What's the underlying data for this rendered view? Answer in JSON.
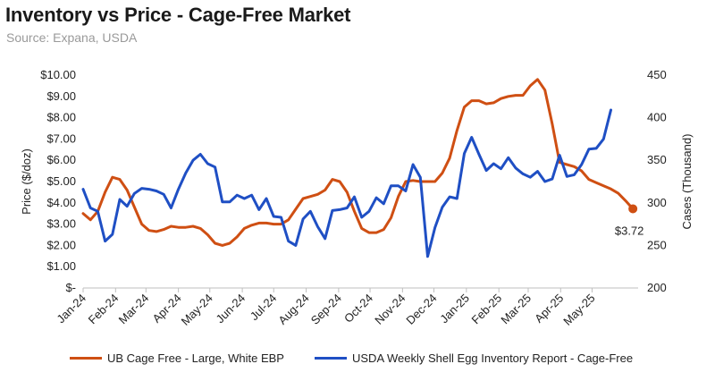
{
  "title": "Inventory vs Price - Cage-Free Market",
  "subtitle": "Source: Expana, USDA",
  "colors": {
    "price": "#cf4f13",
    "inventory": "#1f4fc4",
    "axis": "#bfbfbf"
  },
  "legend": {
    "price": "UB Cage Free - Large, White EBP",
    "inventory": "USDA Weekly Shell Egg Inventory Report - Cage-Free"
  },
  "chart_data": {
    "type": "line",
    "title": "Inventory vs Price - Cage-Free Market",
    "subtitle": "Source: Expana, USDA",
    "x_axis_type": "date",
    "x_tick_labels": [
      "Jan-24",
      "Feb-24",
      "Mar-24",
      "Apr-24",
      "May-24",
      "Jun-24",
      "Jul-24",
      "Aug-24",
      "Sep-24",
      "Oct-24",
      "Nov-24",
      "Dec-24",
      "Jan-25",
      "Feb-25",
      "Mar-25",
      "Apr-25",
      "May-25"
    ],
    "xlim": [
      "2024-01-01",
      "2025-06-14"
    ],
    "y_left": {
      "label": "Price ($/doz)",
      "ylim": [
        0,
        10
      ],
      "ticks": [
        0,
        1,
        2,
        3,
        4,
        5,
        6,
        7,
        8,
        9,
        10
      ],
      "tick_labels": [
        "$-",
        "$1.00",
        "$2.00",
        "$3.00",
        "$4.00",
        "$5.00",
        "$6.00",
        "$7.00",
        "$8.00",
        "$9.00",
        "$10.00"
      ]
    },
    "y_right": {
      "label": "Cases (Thousand)",
      "ylim": [
        200,
        450
      ],
      "ticks": [
        200,
        250,
        300,
        350,
        400,
        450
      ],
      "tick_labels": [
        "200",
        "250",
        "300",
        "350",
        "400",
        "450"
      ]
    },
    "grid": false,
    "legend_position": "bottom",
    "end_annotation": "$3.72",
    "series": [
      {
        "name": "UB Cage Free - Large, White EBP",
        "axis": "left",
        "points": [
          [
            "2024-01-01",
            3.5
          ],
          [
            "2024-01-08",
            3.2
          ],
          [
            "2024-01-15",
            3.6
          ],
          [
            "2024-01-22",
            4.5
          ],
          [
            "2024-01-29",
            5.2
          ],
          [
            "2024-02-05",
            5.1
          ],
          [
            "2024-02-12",
            4.6
          ],
          [
            "2024-02-19",
            3.8
          ],
          [
            "2024-02-26",
            3.0
          ],
          [
            "2024-03-04",
            2.7
          ],
          [
            "2024-03-11",
            2.65
          ],
          [
            "2024-03-18",
            2.75
          ],
          [
            "2024-03-25",
            2.9
          ],
          [
            "2024-04-01",
            2.85
          ],
          [
            "2024-04-08",
            2.85
          ],
          [
            "2024-04-15",
            2.9
          ],
          [
            "2024-04-22",
            2.8
          ],
          [
            "2024-04-29",
            2.5
          ],
          [
            "2024-05-06",
            2.1
          ],
          [
            "2024-05-13",
            2.0
          ],
          [
            "2024-05-20",
            2.1
          ],
          [
            "2024-05-27",
            2.4
          ],
          [
            "2024-06-03",
            2.8
          ],
          [
            "2024-06-10",
            2.95
          ],
          [
            "2024-06-17",
            3.05
          ],
          [
            "2024-06-24",
            3.05
          ],
          [
            "2024-07-01",
            3.0
          ],
          [
            "2024-07-08",
            3.0
          ],
          [
            "2024-07-15",
            3.2
          ],
          [
            "2024-07-22",
            3.7
          ],
          [
            "2024-07-29",
            4.2
          ],
          [
            "2024-08-05",
            4.3
          ],
          [
            "2024-08-12",
            4.4
          ],
          [
            "2024-08-19",
            4.6
          ],
          [
            "2024-08-26",
            5.1
          ],
          [
            "2024-09-02",
            5.0
          ],
          [
            "2024-09-09",
            4.5
          ],
          [
            "2024-09-16",
            3.6
          ],
          [
            "2024-09-23",
            2.8
          ],
          [
            "2024-09-30",
            2.6
          ],
          [
            "2024-10-07",
            2.6
          ],
          [
            "2024-10-14",
            2.75
          ],
          [
            "2024-10-21",
            3.3
          ],
          [
            "2024-10-28",
            4.3
          ],
          [
            "2024-11-04",
            5.0
          ],
          [
            "2024-11-11",
            5.05
          ],
          [
            "2024-11-18",
            5.0
          ],
          [
            "2024-11-25",
            5.0
          ],
          [
            "2024-12-02",
            5.0
          ],
          [
            "2024-12-09",
            5.4
          ],
          [
            "2024-12-16",
            6.1
          ],
          [
            "2024-12-23",
            7.4
          ],
          [
            "2024-12-30",
            8.5
          ],
          [
            "2025-01-06",
            8.8
          ],
          [
            "2025-01-13",
            8.8
          ],
          [
            "2025-01-20",
            8.65
          ],
          [
            "2025-01-27",
            8.7
          ],
          [
            "2025-02-03",
            8.9
          ],
          [
            "2025-02-10",
            9.0
          ],
          [
            "2025-02-17",
            9.05
          ],
          [
            "2025-02-24",
            9.05
          ],
          [
            "2025-03-03",
            9.5
          ],
          [
            "2025-03-10",
            9.8
          ],
          [
            "2025-03-17",
            9.3
          ],
          [
            "2025-03-24",
            7.7
          ],
          [
            "2025-03-31",
            5.9
          ],
          [
            "2025-04-07",
            5.8
          ],
          [
            "2025-04-14",
            5.7
          ],
          [
            "2025-04-21",
            5.5
          ],
          [
            "2025-04-28",
            5.1
          ],
          [
            "2025-05-05",
            4.95
          ],
          [
            "2025-05-12",
            4.8
          ],
          [
            "2025-05-19",
            4.65
          ],
          [
            "2025-05-26",
            4.45
          ],
          [
            "2025-06-02",
            4.1
          ],
          [
            "2025-06-09",
            3.72
          ]
        ]
      },
      {
        "name": "USDA Weekly Shell Egg Inventory Report - Cage-Free",
        "axis": "right",
        "points": [
          [
            "2024-01-01",
            316
          ],
          [
            "2024-01-08",
            294
          ],
          [
            "2024-01-15",
            290
          ],
          [
            "2024-01-22",
            255
          ],
          [
            "2024-01-29",
            263
          ],
          [
            "2024-02-05",
            304
          ],
          [
            "2024-02-12",
            296
          ],
          [
            "2024-02-19",
            311
          ],
          [
            "2024-02-26",
            317
          ],
          [
            "2024-03-04",
            316
          ],
          [
            "2024-03-11",
            314
          ],
          [
            "2024-03-18",
            310
          ],
          [
            "2024-03-25",
            294
          ],
          [
            "2024-04-01",
            316
          ],
          [
            "2024-04-08",
            335
          ],
          [
            "2024-04-15",
            350
          ],
          [
            "2024-04-22",
            357
          ],
          [
            "2024-04-29",
            346
          ],
          [
            "2024-05-06",
            342
          ],
          [
            "2024-05-13",
            301
          ],
          [
            "2024-05-20",
            301
          ],
          [
            "2024-05-27",
            309
          ],
          [
            "2024-06-03",
            305
          ],
          [
            "2024-06-10",
            309
          ],
          [
            "2024-06-17",
            292
          ],
          [
            "2024-06-24",
            305
          ],
          [
            "2024-07-01",
            284
          ],
          [
            "2024-07-08",
            283
          ],
          [
            "2024-07-15",
            255
          ],
          [
            "2024-07-22",
            250
          ],
          [
            "2024-07-29",
            281
          ],
          [
            "2024-08-05",
            290
          ],
          [
            "2024-08-12",
            272
          ],
          [
            "2024-08-19",
            258
          ],
          [
            "2024-08-26",
            291
          ],
          [
            "2024-09-02",
            292
          ],
          [
            "2024-09-09",
            294
          ],
          [
            "2024-09-16",
            307
          ],
          [
            "2024-09-23",
            283
          ],
          [
            "2024-09-30",
            290
          ],
          [
            "2024-10-07",
            306
          ],
          [
            "2024-10-14",
            299
          ],
          [
            "2024-10-21",
            320
          ],
          [
            "2024-10-28",
            320
          ],
          [
            "2024-11-04",
            314
          ],
          [
            "2024-11-11",
            345
          ],
          [
            "2024-11-18",
            330
          ],
          [
            "2024-11-25",
            237
          ],
          [
            "2024-12-02",
            271
          ],
          [
            "2024-12-09",
            295
          ],
          [
            "2024-12-16",
            307
          ],
          [
            "2024-12-23",
            305
          ],
          [
            "2024-12-30",
            358
          ],
          [
            "2025-01-06",
            377
          ],
          [
            "2025-01-13",
            357
          ],
          [
            "2025-01-20",
            338
          ],
          [
            "2025-01-27",
            346
          ],
          [
            "2025-02-03",
            340
          ],
          [
            "2025-02-10",
            353
          ],
          [
            "2025-02-17",
            341
          ],
          [
            "2025-02-24",
            334
          ],
          [
            "2025-03-03",
            330
          ],
          [
            "2025-03-10",
            337
          ],
          [
            "2025-03-17",
            325
          ],
          [
            "2025-03-24",
            328
          ],
          [
            "2025-03-31",
            356
          ],
          [
            "2025-04-07",
            331
          ],
          [
            "2025-04-14",
            333
          ],
          [
            "2025-04-21",
            345
          ],
          [
            "2025-04-28",
            363
          ],
          [
            "2025-05-05",
            364
          ],
          [
            "2025-05-12",
            375
          ],
          [
            "2025-05-19",
            409
          ]
        ]
      }
    ]
  }
}
